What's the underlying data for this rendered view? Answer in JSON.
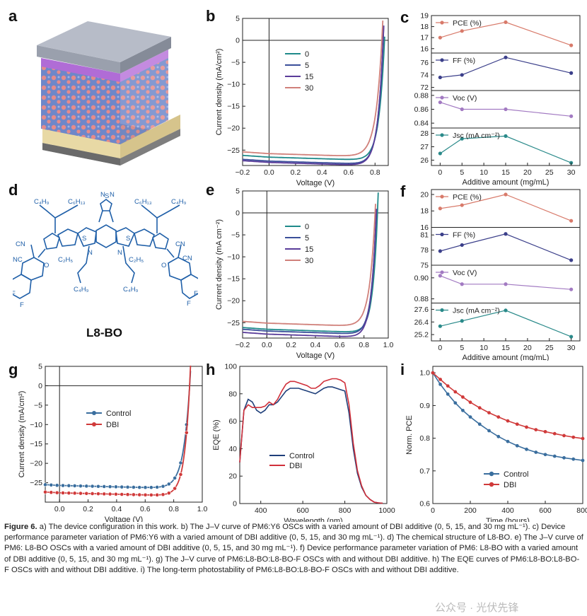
{
  "labels": {
    "a": "a",
    "b": "b",
    "c": "c",
    "d": "d",
    "e": "e",
    "f": "f",
    "g": "g",
    "h": "h",
    "i": "i"
  },
  "molecule": {
    "name": "L8-BO"
  },
  "chart_data": [
    {
      "id": "b",
      "type": "line",
      "xlabel": "Voltage (V)",
      "ylabel": "Current density (mA/cm²)",
      "xlim": [
        -0.2,
        0.9
      ],
      "ylim": [
        -28.5,
        5
      ],
      "xticks": [
        "−0.2",
        "0.0",
        "0.2",
        "0.4",
        "0.6",
        "0.8"
      ],
      "yticks": [
        "5",
        "0",
        "−5",
        "−10",
        "−15",
        "−20",
        "−25"
      ],
      "legend": [
        "0",
        "5",
        "15",
        "30"
      ],
      "series": [
        {
          "name": "0",
          "color": "#1f8a8a",
          "jsc": -26.6,
          "voc": 0.87,
          "k": 0.042
        },
        {
          "name": "5",
          "color": "#3b4f9a",
          "jsc": -27.5,
          "voc": 0.86,
          "k": 0.04
        },
        {
          "name": "15",
          "color": "#5a3c9a",
          "jsc": -27.8,
          "voc": 0.86,
          "k": 0.041
        },
        {
          "name": "30",
          "color": "#d0807a",
          "jsc": -25.8,
          "voc": 0.85,
          "k": 0.047
        }
      ]
    },
    {
      "id": "c",
      "type": "line",
      "xlabel": "Additive amount (mg/mL)",
      "x": [
        0,
        5,
        15,
        30
      ],
      "xticks": [
        "0",
        "5",
        "10",
        "15",
        "20",
        "25",
        "30"
      ],
      "subplots": [
        {
          "label": "PCE (%)",
          "color": "#d87a6a",
          "values": [
            17.0,
            17.6,
            18.4,
            16.3
          ],
          "ylim": [
            15.6,
            19.0
          ],
          "yticks": [
            "19",
            "18",
            "17",
            "16"
          ]
        },
        {
          "label": "FF (%)",
          "color": "#3b3f8a",
          "values": [
            73.6,
            74.0,
            76.8,
            74.3
          ],
          "ylim": [
            71.5,
            77.5
          ],
          "yticks": [
            "76",
            "74",
            "72"
          ]
        },
        {
          "label": "Voc (V)",
          "color": "#a27ac2",
          "values": [
            0.87,
            0.86,
            0.86,
            0.85
          ],
          "ylim": [
            0.833,
            0.887
          ],
          "yticks": [
            "0.88",
            "0.86",
            "0.84"
          ]
        },
        {
          "label": "Jsc (mA cm⁻²)",
          "color": "#2a8a8a",
          "values": [
            26.5,
            27.6,
            27.8,
            25.8
          ],
          "ylim": [
            25.6,
            28.4
          ],
          "yticks": [
            "28",
            "27",
            "26"
          ]
        }
      ]
    },
    {
      "id": "e",
      "type": "line",
      "xlabel": "Voltage (V)",
      "ylabel": "Current density (mA cm⁻²)",
      "xlim": [
        -0.2,
        1.0
      ],
      "ylim": [
        -28.5,
        5
      ],
      "xticks": [
        "−0.2",
        "0.0",
        "0.2",
        "0.4",
        "0.6",
        "0.8",
        "1.0"
      ],
      "yticks": [
        "5",
        "0",
        "−5",
        "−10",
        "−15",
        "−20",
        "−25"
      ],
      "legend": [
        "0",
        "5",
        "15",
        "30"
      ],
      "series": [
        {
          "name": "0",
          "color": "#1f8a8a",
          "jsc": -26.5,
          "voc": 0.91,
          "k": 0.04
        },
        {
          "name": "5",
          "color": "#3b4f9a",
          "jsc": -26.9,
          "voc": 0.9,
          "k": 0.04
        },
        {
          "name": "15",
          "color": "#5a3c9a",
          "jsc": -27.6,
          "voc": 0.9,
          "k": 0.041
        },
        {
          "name": "30",
          "color": "#d0807a",
          "jsc": -25.1,
          "voc": 0.89,
          "k": 0.046
        }
      ]
    },
    {
      "id": "f",
      "type": "line",
      "xlabel": "Additive amount (mg/mL)",
      "x": [
        0,
        5,
        15,
        30
      ],
      "xticks": [
        "0",
        "5",
        "10",
        "15",
        "20",
        "25",
        "30"
      ],
      "subplots": [
        {
          "label": "PCE (%)",
          "color": "#d87a6a",
          "values": [
            18.3,
            18.7,
            20.0,
            16.8
          ],
          "ylim": [
            16.0,
            20.6
          ],
          "yticks": [
            "20",
            "18",
            "16"
          ]
        },
        {
          "label": "FF (%)",
          "color": "#3b3f8a",
          "values": [
            77.8,
            79.0,
            81.2,
            76.0
          ],
          "ylim": [
            75.0,
            82.5
          ],
          "yticks": [
            "81",
            "78",
            "75"
          ]
        },
        {
          "label": "Voc (V)",
          "color": "#a27ac2",
          "values": [
            0.902,
            0.894,
            0.894,
            0.889
          ],
          "ylim": [
            0.876,
            0.912
          ],
          "yticks": [
            "0.90",
            "0.88"
          ]
        },
        {
          "label": "Jsc (mA cm⁻²)",
          "color": "#2a8a8a",
          "values": [
            26.0,
            26.5,
            27.5,
            25.0
          ],
          "ylim": [
            24.6,
            28.2
          ],
          "yticks": [
            "27.6",
            "26.4",
            "25.2"
          ]
        }
      ]
    },
    {
      "id": "g",
      "type": "line",
      "xlabel": "Voltage (V)",
      "ylabel": "Current density (mA/cm²)",
      "xlim": [
        -0.1,
        1.0
      ],
      "ylim": [
        -30,
        5
      ],
      "xticks": [
        "0.0",
        "0.2",
        "0.4",
        "0.6",
        "0.8",
        "1.0"
      ],
      "yticks": [
        "5",
        "0",
        "−5",
        "−10",
        "−15",
        "−20",
        "−25"
      ],
      "legend": [
        "Control",
        "DBI"
      ],
      "series": [
        {
          "name": "Control",
          "color": "#3a6e9e",
          "jsc": -25.7,
          "voc": 0.91,
          "k": 0.045
        },
        {
          "name": "DBI",
          "color": "#d03a3a",
          "jsc": -27.6,
          "voc": 0.91,
          "k": 0.038
        }
      ]
    },
    {
      "id": "h",
      "type": "line",
      "xlabel": "Wavelength (nm)",
      "ylabel": "EQE (%)",
      "xlim": [
        300,
        1000
      ],
      "ylim": [
        0,
        100
      ],
      "xticks": [
        "400",
        "600",
        "800",
        "1000"
      ],
      "yticks": [
        "0",
        "20",
        "40",
        "60",
        "80",
        "100"
      ],
      "legend": [
        "Control",
        "DBI"
      ],
      "series": [
        {
          "name": "Control",
          "color": "#1f3f7a",
          "x": [
            300,
            320,
            340,
            360,
            380,
            400,
            420,
            440,
            460,
            480,
            500,
            520,
            540,
            560,
            580,
            600,
            620,
            640,
            660,
            680,
            700,
            720,
            740,
            760,
            780,
            800,
            820,
            840,
            860,
            880,
            900,
            920,
            940,
            960,
            980
          ],
          "values": [
            30,
            68,
            76,
            74,
            68,
            66,
            68,
            72,
            72,
            74,
            78,
            82,
            84,
            84,
            84,
            83,
            82,
            81,
            80,
            82,
            84,
            85,
            85,
            84,
            83,
            82,
            66,
            40,
            22,
            12,
            6,
            3,
            1,
            0.5,
            0.2
          ]
        },
        {
          "name": "DBI",
          "color": "#d0303a",
          "x": [
            300,
            320,
            340,
            360,
            380,
            400,
            420,
            440,
            460,
            480,
            500,
            520,
            540,
            560,
            580,
            600,
            620,
            640,
            660,
            680,
            700,
            720,
            740,
            760,
            780,
            800,
            820,
            840,
            860,
            880,
            900,
            920,
            940,
            960,
            980
          ],
          "values": [
            30,
            68,
            72,
            70,
            70,
            70,
            71,
            74,
            72,
            76,
            82,
            87,
            89,
            89,
            88,
            87,
            86,
            84,
            84,
            86,
            89,
            90,
            91,
            91,
            90,
            88,
            72,
            44,
            24,
            13,
            6,
            3,
            1,
            0.5,
            0.2
          ]
        }
      ]
    },
    {
      "id": "i",
      "type": "line",
      "xlabel": "Time (hours)",
      "ylabel": "Norm. PCE",
      "xlim": [
        0,
        800
      ],
      "ylim": [
        0.6,
        1.02
      ],
      "xticks": [
        "0",
        "200",
        "400",
        "600",
        "800"
      ],
      "yticks": [
        "1.0",
        "0.9",
        "0.8",
        "0.7",
        "0.6"
      ],
      "legend": [
        "Control",
        "DBI"
      ],
      "series": [
        {
          "name": "Control",
          "color": "#3a6e9e",
          "x": [
            0,
            40,
            80,
            120,
            160,
            200,
            250,
            300,
            350,
            400,
            450,
            500,
            550,
            600,
            650,
            700,
            750,
            800
          ],
          "values": [
            1.0,
            0.965,
            0.935,
            0.908,
            0.885,
            0.865,
            0.843,
            0.823,
            0.805,
            0.79,
            0.777,
            0.766,
            0.757,
            0.75,
            0.745,
            0.74,
            0.736,
            0.732
          ]
        },
        {
          "name": "DBI",
          "color": "#d03a3a",
          "x": [
            0,
            40,
            80,
            120,
            160,
            200,
            250,
            300,
            350,
            400,
            450,
            500,
            550,
            600,
            650,
            700,
            750,
            800
          ],
          "values": [
            1.0,
            0.98,
            0.96,
            0.942,
            0.926,
            0.91,
            0.893,
            0.878,
            0.865,
            0.853,
            0.843,
            0.834,
            0.826,
            0.82,
            0.814,
            0.808,
            0.803,
            0.799
          ]
        }
      ]
    }
  ],
  "caption": {
    "prefix": "Figure 6.",
    "text": " a) The device configuration in this work. b) The J–V curve of PM6:Y6 OSCs with a varied amount of DBI additive (0, 5, 15, and 30 mg mL⁻¹). c) Device performance parameter variation of PM6:Y6 with a varied amount of DBI additive (0, 5, 15, and 30 mg mL⁻¹). d) The chemical structure of L8-BO. e) The J–V curve of PM6: L8-BO OSCs with a varied amount of DBI additive (0, 5, 15, and 30 mg mL⁻¹). f) Device performance parameter variation of PM6: L8-BO with a varied amount of DBI additive (0, 5, 15, and 30 mg mL⁻¹). g) The J–V curve of PM6:L8-BO:L8-BO-F OSCs with and without DBI additive. h) The EQE curves of PM6:L8-BO:L8-BO-F OSCs with and without DBI additive. i) The long-term photostability of PM6:L8-BO:L8-BO-F OSCs with and without DBI additive."
  },
  "watermark": "公众号 · 光伏先锋"
}
